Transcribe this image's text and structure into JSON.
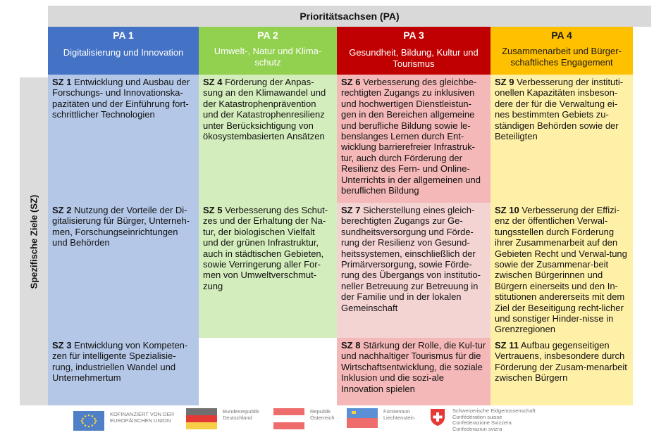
{
  "header": {
    "title": "Prioritätsachsen (PA)"
  },
  "side_label": "Spezifische Ziele (SZ)",
  "colors": {
    "pa1": "#4472c4",
    "pa2": "#92d050",
    "pa3": "#c00000",
    "pa4": "#ffc000",
    "sz1": "#b4c7e7",
    "sz2": "#d4edbc",
    "sz3": "#f4b8b8",
    "sz4": "#fff0a8"
  },
  "axes": [
    {
      "name": "PA 1",
      "title": "Digitalisierung und Innovation"
    },
    {
      "name": "PA 2",
      "title": "Umwelt-, Natur und Klima-schutz"
    },
    {
      "name": "PA 3",
      "title": "Gesundheit, Bildung, Kultur und Tourismus"
    },
    {
      "name": "PA 4",
      "title": "Zusammenarbeit und Bürger-schaftliches Engagement"
    }
  ],
  "goals": {
    "sz1": {
      "code": "SZ 1",
      "text": "Entwicklung und Ausbau der Forschungs- und Innovationska-pazitäten und der Einführung fort-schrittlicher Technologien"
    },
    "sz2": {
      "code": "SZ 2",
      "text": "Nutzung der Vorteile der Di-gitalisierung für Bürger, Unterneh-men, Forschungseinrichtungen und Behörden"
    },
    "sz3": {
      "code": "SZ 3",
      "text": "Entwicklung von Kompeten-zen für intelligente Spezialisie-rung, industriellen Wandel und Unternehmertum"
    },
    "sz4": {
      "code": "SZ 4",
      "text": "Förderung der Anpas-sung an den Klimawandel und der Katastrophenprävention und der Katastrophenresilienz unter Berücksichtigung von ökosystembasierten Ansätzen"
    },
    "sz5": {
      "code": "SZ 5",
      "text": "Verbesserung des Schut-zes und der Erhaltung der Na-tur, der biologischen Vielfalt und der grünen Infrastruktur, auch in städtischen Gebieten, sowie Verringerung aller For-men von Umweltverschmut-zung"
    },
    "sz6": {
      "code": "SZ 6",
      "text": "Verbesserung des gleichbe-rechtigten Zugangs zu inklusiven und hochwertigen Dienstleistun-gen in den Bereichen allgemeine und berufliche Bildung sowie le-benslanges Lernen durch Ent-wicklung barrierefreier Infrastruk-tur, auch durch Förderung der Resilienz des Fern- und Online-Unterrichts in der allgemeinen und beruflichen Bildung"
    },
    "sz7": {
      "code": "SZ 7",
      "text": "Sicherstellung eines gleich-berechtigten Zugangs zur Ge-sundheitsversorgung und Förde-rung der Resilienz von Gesund-heitssystemen, einschließlich der Primärversorgung, sowie Förde-rung des Übergangs von institutio-neller Betreuung zur Betreuung in der Familie und in der lokalen Gemeinschaft"
    },
    "sz8": {
      "code": "SZ 8",
      "text": "Stärkung der Rolle, die Kul-tur und nachhaltiger Tourismus für die Wirtschaftsentwicklung, die soziale Inklusion und die sozi-ale Innovation spielen"
    },
    "sz9": {
      "code": "SZ 9",
      "text": "Verbesserung der instituti-onellen Kapazitäten insbeson-dere der für die Verwaltung ei-nes bestimmten Gebiets zu-ständigen Behörden sowie der Beteiligten"
    },
    "sz10": {
      "code": "SZ 10",
      "text": "Verbesserung der Effizi-enz der öffentlichen Verwal-tungsstellen durch Förderung ihrer Zusammenarbeit auf den Gebieten Recht und Verwal-tung sowie der Zusammenar-beit zwischen Bürgerinnen und Bürgern einerseits und den In-stitutionen andererseits mit dem Ziel der Beseitigung recht-licher und sonstiger Hinder-nisse in Grenzregionen"
    },
    "sz11": {
      "code": "SZ 11",
      "text": "Aufbau gegenseitigen Vertrauens, insbesondere durch Förderung der Zusam-menarbeit zwischen Bürgern"
    }
  },
  "footer": {
    "eu": [
      "KOFINANZIERT VON DER",
      "EUROPÄISCHEN UNION"
    ],
    "de": [
      "Bundesrepublik",
      "Deutschland"
    ],
    "at": [
      "Republik",
      "Österreich"
    ],
    "li": [
      "Fürstentum",
      "Liechtenstein"
    ],
    "ch": [
      "Schweizerische Eidgenossenschaft",
      "Confédération suisse",
      "Confederazione Svizzera",
      "Confederaziun svizra"
    ]
  }
}
